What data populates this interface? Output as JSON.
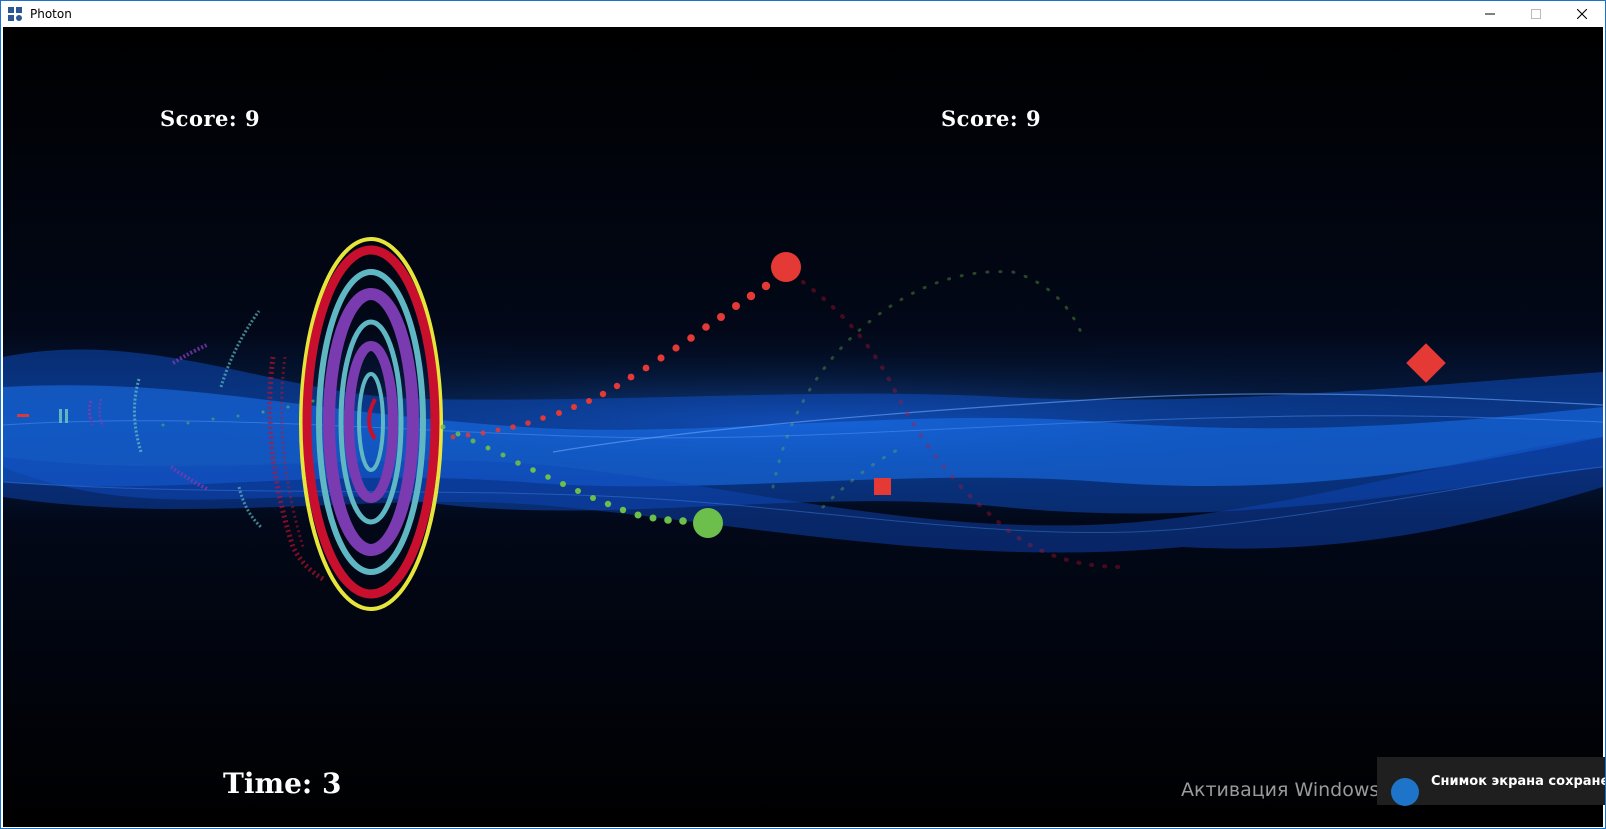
{
  "window": {
    "title": "Photon",
    "controls": [
      "minimize",
      "maximize",
      "close"
    ]
  },
  "hud": {
    "score_left": "Score: 9",
    "score_right": "Score: 9",
    "time": "Time: 3"
  },
  "overlay": {
    "activation_watermark": "Активация Windows",
    "toast_text": "Снимок экрана сохранен"
  },
  "icons": [
    "app-icon",
    "minimize-icon",
    "maximize-icon",
    "close-icon",
    "onedrive-icon"
  ],
  "colors": {
    "background": "#000000",
    "wave": "#1565e0",
    "red_player": "#e53935",
    "green_player": "#6cbf4a",
    "ring_yellow": "#e6e63a",
    "ring_red": "#c8102e",
    "ring_teal": "#5fb7c3",
    "ring_purple": "#7b3bb0"
  }
}
